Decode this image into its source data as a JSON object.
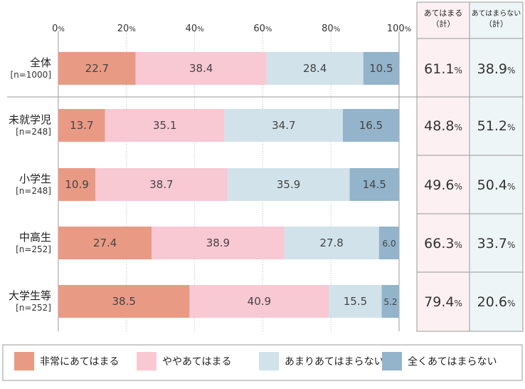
{
  "chart_data": {
    "type": "bar",
    "orientation": "horizontal",
    "stacked": true,
    "x_ticks": [
      "0%",
      "20%",
      "40%",
      "60%",
      "80%",
      "100%"
    ],
    "xlim": [
      0,
      100
    ],
    "categories": [
      {
        "name": "全体",
        "n": "[n=1000]"
      },
      {
        "name": "未就学児",
        "n": "[n=248]"
      },
      {
        "name": "小学生",
        "n": "[n=248]"
      },
      {
        "name": "中高生",
        "n": "[n=252]"
      },
      {
        "name": "大学生等",
        "n": "[n=252]"
      }
    ],
    "series": [
      {
        "name": "非常にあてはまる",
        "color": "#e99a85",
        "values": [
          22.7,
          13.7,
          10.9,
          27.4,
          38.5
        ]
      },
      {
        "name": "ややあてはまる",
        "color": "#f8c8d3",
        "values": [
          38.4,
          35.1,
          38.7,
          38.9,
          40.9
        ]
      },
      {
        "name": "あまりあてはまらない",
        "color": "#d1e2ea",
        "values": [
          28.4,
          34.7,
          35.9,
          27.8,
          15.5
        ]
      },
      {
        "name": "全くあてはまらない",
        "color": "#93b4cb",
        "values": [
          10.5,
          16.5,
          14.5,
          6.0,
          5.2
        ]
      }
    ],
    "summary_columns": [
      {
        "header_line1": "あてはまる",
        "header_line2": "（計）",
        "bg": "#fdf0f2",
        "values": [
          "61.1",
          "48.8",
          "49.6",
          "66.3",
          "79.4"
        ]
      },
      {
        "header_line1": "あてはまらない",
        "header_line2": "（計）",
        "bg": "#eef5f6",
        "values": [
          "38.9",
          "51.2",
          "50.4",
          "33.7",
          "20.6"
        ]
      }
    ],
    "percent_unit": "%",
    "legend_position": "bottom"
  }
}
